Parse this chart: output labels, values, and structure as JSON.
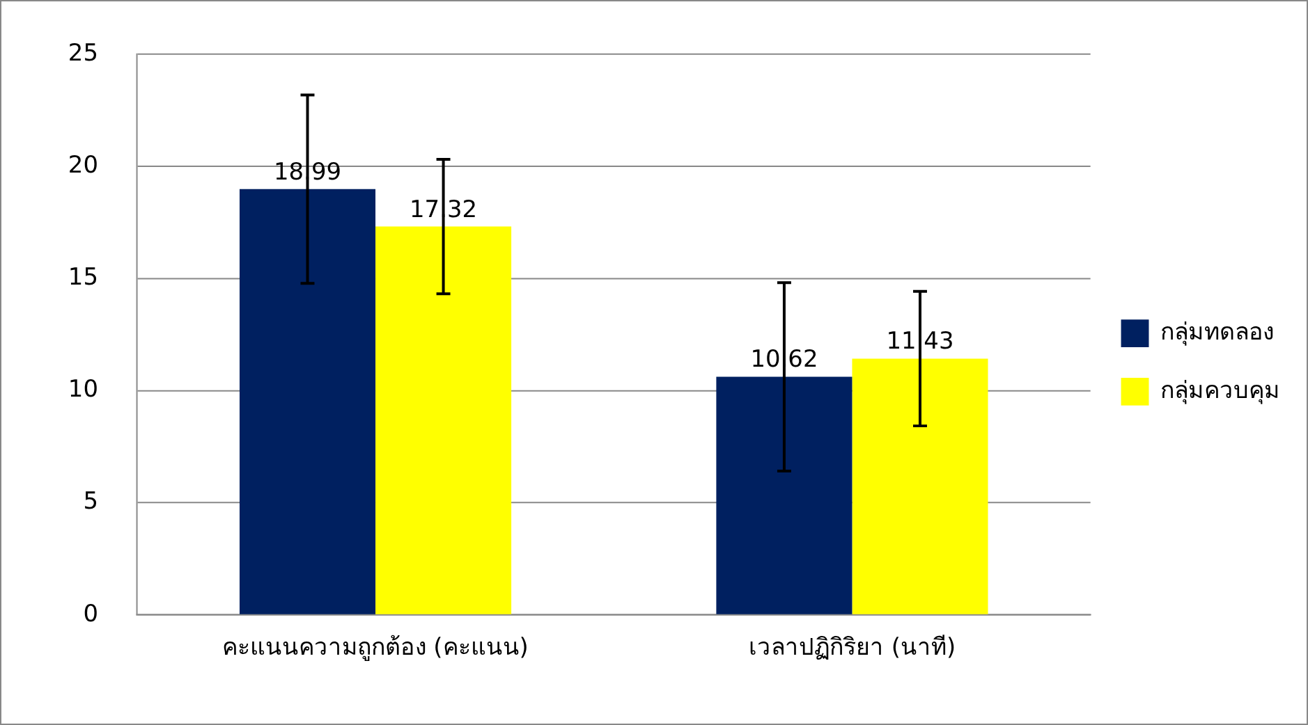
{
  "chart_data": {
    "type": "bar",
    "categories": [
      "คะแนนความถูกต้อง (คะแนน)",
      "เวลาปฏิกิริยา (นาที)"
    ],
    "series": [
      {
        "name": "กลุ่มทดลอง",
        "color": "#002060",
        "values": [
          18.99,
          10.62
        ],
        "errors": [
          4.2,
          4.2
        ]
      },
      {
        "name": "กลุ่มควบคุม",
        "color": "#ffff00",
        "values": [
          17.32,
          11.43
        ],
        "errors": [
          3.0,
          3.0
        ]
      }
    ],
    "ylim": [
      0,
      25
    ],
    "yticks": [
      0,
      5,
      10,
      15,
      20,
      25
    ],
    "grid": "y",
    "legend": "right",
    "data_labels": true
  }
}
